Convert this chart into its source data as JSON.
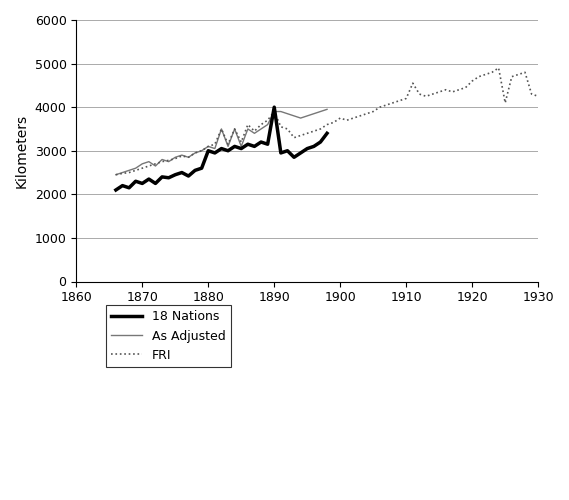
{
  "title": "",
  "ylabel": "Kilometers",
  "xlim": [
    1860,
    1930
  ],
  "ylim": [
    0,
    6000
  ],
  "yticks": [
    0,
    1000,
    2000,
    3000,
    4000,
    5000,
    6000
  ],
  "xticks": [
    1860,
    1870,
    1880,
    1890,
    1900,
    1910,
    1920,
    1930
  ],
  "nations_18": {
    "years": [
      1866,
      1867,
      1868,
      1869,
      1870,
      1871,
      1872,
      1873,
      1874,
      1875,
      1876,
      1877,
      1878,
      1879,
      1880,
      1881,
      1882,
      1883,
      1884,
      1885,
      1886,
      1887,
      1888,
      1889,
      1890,
      1891,
      1892,
      1893,
      1894,
      1895,
      1896,
      1897,
      1898
    ],
    "values": [
      2100,
      2200,
      2150,
      2300,
      2250,
      2350,
      2250,
      2400,
      2380,
      2450,
      2500,
      2420,
      2550,
      2600,
      3000,
      2950,
      3050,
      3000,
      3100,
      3050,
      3150,
      3100,
      3200,
      3150,
      4000,
      2950,
      3000,
      2850,
      2950,
      3050,
      3100,
      3200,
      3400
    ]
  },
  "as_adjusted": {
    "years": [
      1866,
      1867,
      1868,
      1869,
      1870,
      1871,
      1872,
      1873,
      1874,
      1875,
      1876,
      1877,
      1878,
      1879,
      1880,
      1881,
      1882,
      1883,
      1884,
      1885,
      1886,
      1887,
      1888,
      1889,
      1890,
      1891,
      1892,
      1893,
      1894,
      1895,
      1896,
      1897,
      1898
    ],
    "values": [
      2450,
      2500,
      2550,
      2600,
      2700,
      2750,
      2650,
      2800,
      2750,
      2850,
      2900,
      2850,
      2950,
      3000,
      3100,
      3050,
      3500,
      3100,
      3500,
      3100,
      3500,
      3400,
      3500,
      3600,
      3900,
      3900,
      3850,
      3800,
      3750,
      3800,
      3850,
      3900,
      3950
    ]
  },
  "fri": {
    "years": [
      1866,
      1867,
      1868,
      1869,
      1870,
      1871,
      1872,
      1873,
      1874,
      1875,
      1876,
      1877,
      1878,
      1879,
      1880,
      1881,
      1882,
      1883,
      1884,
      1885,
      1886,
      1887,
      1888,
      1889,
      1890,
      1891,
      1892,
      1893,
      1894,
      1895,
      1896,
      1897,
      1898,
      1899,
      1900,
      1901,
      1902,
      1903,
      1904,
      1905,
      1906,
      1907,
      1908,
      1909,
      1910,
      1911,
      1912,
      1913,
      1914,
      1915,
      1916,
      1917,
      1918,
      1919,
      1920,
      1921,
      1922,
      1923,
      1924,
      1925,
      1926,
      1927,
      1928,
      1929,
      1930
    ],
    "values": [
      2450,
      2480,
      2500,
      2550,
      2600,
      2650,
      2700,
      2750,
      2780,
      2820,
      2880,
      2850,
      2950,
      3000,
      3100,
      3150,
      3500,
      3150,
      3500,
      3200,
      3600,
      3450,
      3600,
      3700,
      3900,
      3550,
      3500,
      3300,
      3350,
      3400,
      3450,
      3500,
      3600,
      3650,
      3750,
      3700,
      3750,
      3800,
      3850,
      3900,
      4000,
      4050,
      4100,
      4150,
      4200,
      4550,
      4300,
      4250,
      4300,
      4350,
      4400,
      4350,
      4400,
      4450,
      4600,
      4700,
      4750,
      4800,
      4900,
      4100,
      4700,
      4750,
      4800,
      4300,
      4250
    ]
  },
  "background_color": "#ffffff",
  "grid_color": "#aaaaaa",
  "nations_color": "#000000",
  "adjusted_color": "#777777",
  "fri_color": "#555555"
}
